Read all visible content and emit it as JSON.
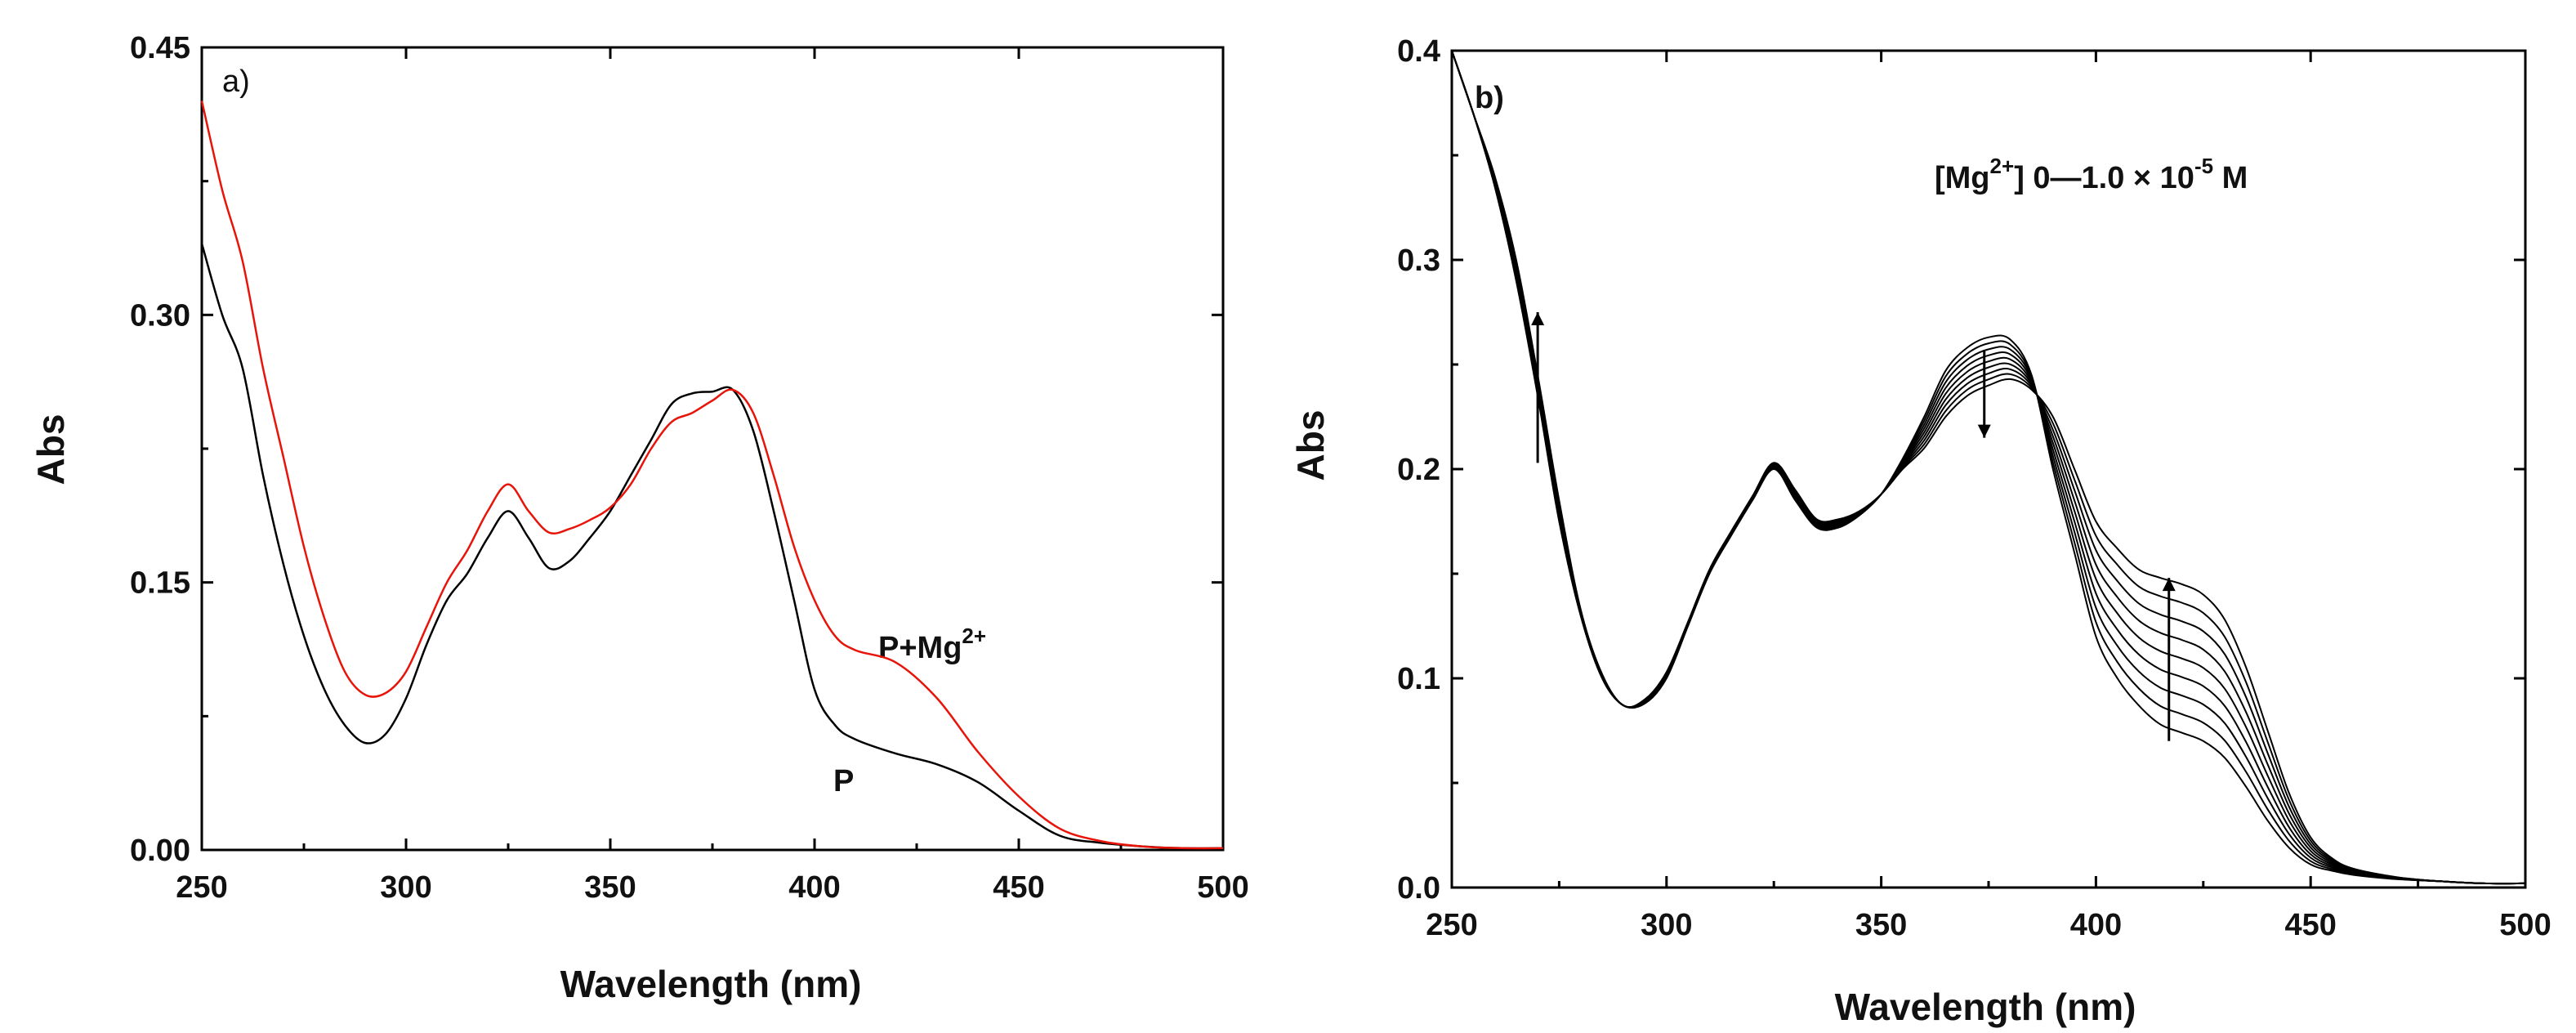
{
  "chart_data": [
    {
      "panel_label": "a)",
      "type": "line",
      "xlabel": "Wavelength (nm)",
      "ylabel": "Abs",
      "xlim": [
        250,
        500
      ],
      "ylim": [
        0,
        0.45
      ],
      "xticks": [
        "250",
        "300",
        "350",
        "400",
        "450",
        "500"
      ],
      "yticks": [
        "0.00",
        "0.15",
        "0.30",
        "0.45"
      ],
      "xtick_values": [
        250,
        300,
        350,
        400,
        450,
        500
      ],
      "ytick_values": [
        0,
        0.15,
        0.3,
        0.45
      ],
      "series": [
        {
          "name": "P",
          "label_text": "P",
          "color": "#000000",
          "x": [
            250,
            255,
            260,
            265,
            270,
            275,
            280,
            285,
            290,
            295,
            300,
            305,
            310,
            315,
            320,
            325,
            330,
            335,
            340,
            345,
            350,
            355,
            360,
            365,
            370,
            375,
            380,
            385,
            390,
            395,
            400,
            405,
            410,
            420,
            430,
            440,
            450,
            460,
            470,
            480,
            490,
            500
          ],
          "y": [
            0.34,
            0.3,
            0.27,
            0.21,
            0.16,
            0.12,
            0.09,
            0.07,
            0.06,
            0.065,
            0.085,
            0.115,
            0.14,
            0.155,
            0.175,
            0.19,
            0.175,
            0.158,
            0.162,
            0.175,
            0.19,
            0.21,
            0.23,
            0.25,
            0.256,
            0.257,
            0.258,
            0.235,
            0.19,
            0.14,
            0.09,
            0.07,
            0.062,
            0.054,
            0.048,
            0.038,
            0.022,
            0.008,
            0.004,
            0.002,
            0.001,
            0.001
          ]
        },
        {
          "name": "P+Mg2+",
          "label_text": "P+Mg",
          "label_sup": "2+",
          "color": "#e8140a",
          "x": [
            250,
            255,
            260,
            265,
            270,
            275,
            280,
            285,
            290,
            295,
            300,
            305,
            310,
            315,
            320,
            325,
            330,
            335,
            340,
            345,
            350,
            355,
            360,
            365,
            370,
            375,
            380,
            385,
            390,
            395,
            400,
            405,
            410,
            420,
            430,
            440,
            450,
            460,
            470,
            480,
            490,
            500
          ],
          "y": [
            0.42,
            0.37,
            0.33,
            0.27,
            0.22,
            0.17,
            0.13,
            0.1,
            0.087,
            0.088,
            0.1,
            0.125,
            0.15,
            0.168,
            0.19,
            0.205,
            0.19,
            0.178,
            0.18,
            0.185,
            0.192,
            0.205,
            0.225,
            0.24,
            0.245,
            0.252,
            0.258,
            0.245,
            0.21,
            0.17,
            0.14,
            0.12,
            0.112,
            0.105,
            0.085,
            0.055,
            0.03,
            0.012,
            0.005,
            0.002,
            0.001,
            0.001
          ]
        }
      ]
    },
    {
      "panel_label": "b)",
      "type": "line",
      "xlabel": "Wavelength (nm)",
      "ylabel": "Abs",
      "xlim": [
        250,
        500
      ],
      "ylim": [
        0,
        0.4
      ],
      "xticks": [
        "250",
        "300",
        "350",
        "400",
        "450",
        "500"
      ],
      "yticks": [
        "0.0",
        "0.1",
        "0.2",
        "0.3",
        "0.4"
      ],
      "xtick_values": [
        250,
        300,
        350,
        400,
        450,
        500
      ],
      "ytick_values": [
        0,
        0.1,
        0.2,
        0.3,
        0.4
      ],
      "annotation": {
        "prefix": "[Mg",
        "sup1": "2+",
        "middle": "] 0—1.0 × 10",
        "sup2": "-5",
        "suffix": " M"
      },
      "x": [
        250,
        255,
        260,
        265,
        270,
        275,
        280,
        285,
        290,
        295,
        300,
        305,
        310,
        315,
        320,
        325,
        330,
        335,
        340,
        345,
        350,
        355,
        360,
        365,
        370,
        375,
        380,
        385,
        390,
        395,
        400,
        405,
        410,
        415,
        420,
        425,
        430,
        435,
        440,
        445,
        450,
        455,
        460,
        470,
        480,
        490,
        500
      ],
      "base_y": [
        0.4,
        0.37,
        0.335,
        0.29,
        0.235,
        0.175,
        0.13,
        0.1,
        0.087,
        0.088,
        0.1,
        0.125,
        0.15,
        0.168,
        0.185,
        0.2,
        0.185,
        0.172,
        0.172,
        0.178,
        0.188,
        0.205,
        0.225,
        0.247,
        0.258,
        0.263,
        0.262,
        0.245,
        0.2,
        0.16,
        0.12,
        0.1,
        0.087,
        0.078,
        0.074,
        0.07,
        0.062,
        0.048,
        0.032,
        0.019,
        0.011,
        0.008,
        0.006,
        0.004,
        0.003,
        0.002,
        0.002
      ],
      "final_y": [
        0.4,
        0.37,
        0.34,
        0.3,
        0.245,
        0.185,
        0.133,
        0.102,
        0.087,
        0.09,
        0.103,
        0.127,
        0.152,
        0.17,
        0.187,
        0.203,
        0.19,
        0.176,
        0.176,
        0.18,
        0.188,
        0.2,
        0.21,
        0.225,
        0.235,
        0.24,
        0.243,
        0.238,
        0.225,
        0.2,
        0.175,
        0.162,
        0.152,
        0.148,
        0.145,
        0.14,
        0.128,
        0.105,
        0.075,
        0.045,
        0.024,
        0.014,
        0.009,
        0.005,
        0.003,
        0.002,
        0.002
      ],
      "num_curves": 9,
      "arrows": [
        {
          "x": 270,
          "y_from": 0.203,
          "y_to": 0.275
        },
        {
          "x": 374,
          "y_from": 0.257,
          "y_to": 0.215
        },
        {
          "x": 417,
          "y_from": 0.07,
          "y_to": 0.148
        }
      ]
    }
  ]
}
